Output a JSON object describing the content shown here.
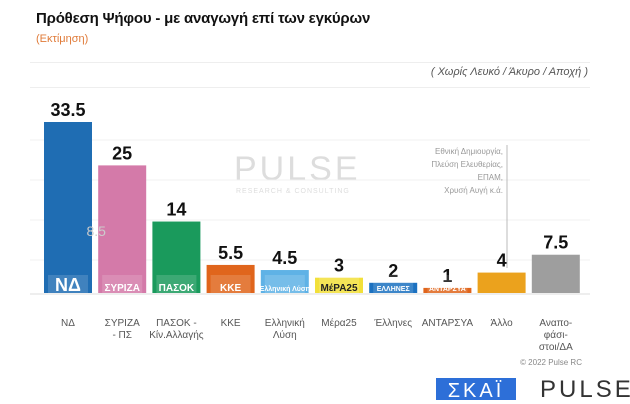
{
  "header": {
    "title": "Πρόθεση Ψήφου - με αναγωγή επί των εγκύρων",
    "subtitle": "(Εκτίμηση)",
    "note": "( Χωρίς Λευκό / Άκυρο / Αποχή )"
  },
  "chart_data": {
    "type": "bar",
    "title": "Πρόθεση Ψήφου - με αναγωγή επί των εγκύρων",
    "categories": [
      "ΝΔ",
      "ΣΥΡΙΖΑ - ΠΣ",
      "ΠΑΣΟΚ - Κίν.Αλλαγής",
      "ΚΚΕ",
      "Ελληνική Λύση",
      "Μέρα25",
      "Έλληνες",
      "ΑΝΤΑΡΣΥΑ",
      "Άλλο",
      "Αναπο-φάσι-στοι/ΔΑ"
    ],
    "category_lines": [
      [
        "ΝΔ"
      ],
      [
        "ΣΥΡΙΖΑ",
        "- ΠΣ"
      ],
      [
        "ΠΑΣΟΚ -",
        "Κίν.Αλλαγής"
      ],
      [
        "ΚΚΕ"
      ],
      [
        "Ελληνική",
        "Λύση"
      ],
      [
        "Μέρα25"
      ],
      [
        "Έλληνες"
      ],
      [
        "ΑΝΤΑΡΣΥΑ"
      ],
      [
        "Άλλο"
      ],
      [
        "Αναπο-",
        "φάσι-",
        "στοι/ΔΑ"
      ]
    ],
    "values": [
      33.5,
      25,
      14,
      5.5,
      4.5,
      3,
      2,
      1,
      4,
      7.5
    ],
    "value_labels": [
      "33.5",
      "25",
      "14",
      "5.5",
      "4.5",
      "3",
      "2",
      "1",
      "4",
      "7.5"
    ],
    "colors": [
      "#1f6db3",
      "#d47aa9",
      "#1a9a5c",
      "#e0651c",
      "#5fb2e6",
      "#f2e03a",
      "#1c71c0",
      "#e0651c",
      "#eba21d",
      "#9e9e9e"
    ],
    "logos": [
      "ΝΔ",
      "ΣΥΡΙΖΑ",
      "ΠΑΣΟΚ",
      "ΚΚΕ",
      "Ελληνική Λύση",
      "ΜέΡΑ25",
      "ΕΛΛΗΝΕΣ",
      "ΑΝΤΑΡΣΥΑ",
      "",
      ""
    ],
    "inner_annotation": "8.5",
    "other_annotation": [
      "Εθνική Δημιουργία,",
      "Πλεύση Ελευθερίας,",
      "ΕΠΑΜ,",
      "Χρυσή Αυγή  κ.ά."
    ],
    "ylim": [
      0,
      35
    ],
    "grid": true,
    "legend": "none"
  },
  "watermark": {
    "brand": "PULSE",
    "tagline": "RESEARCH & CONSULTING"
  },
  "footer": {
    "copyright": "© 2022 Pulse RC",
    "logo_skai": "ΣΚΑΪ",
    "logo_pulse": "PULSE"
  }
}
